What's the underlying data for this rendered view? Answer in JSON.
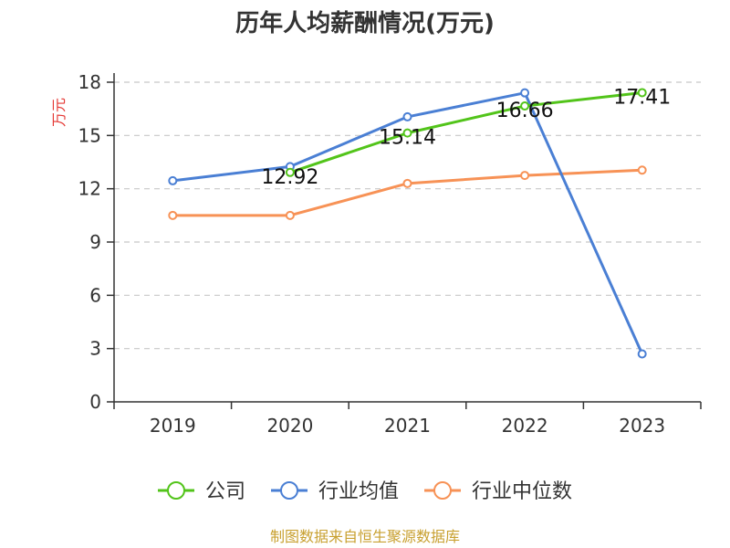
{
  "chart_data": {
    "type": "line",
    "title": "历年人均薪酬情况(万元)",
    "ylabel": "万元",
    "xlabel": "",
    "categories": [
      "2019",
      "2020",
      "2021",
      "2022",
      "2023"
    ],
    "ylim": [
      0,
      18
    ],
    "yticks": [
      0,
      3,
      6,
      9,
      12,
      15,
      18
    ],
    "grid": true,
    "legend_position": "bottom",
    "series": [
      {
        "name": "公司",
        "color": "#52c41a",
        "values": [
          null,
          12.92,
          15.14,
          16.66,
          17.41
        ],
        "labels": [
          "",
          "12.92",
          "15.14",
          "16.66",
          "17.41"
        ]
      },
      {
        "name": "行业均值",
        "color": "#4a7fd4",
        "values": [
          12.45,
          13.25,
          16.05,
          17.4,
          2.7
        ],
        "labels": [
          "",
          "",
          "",
          "",
          ""
        ]
      },
      {
        "name": "行业中位数",
        "color": "#f79256",
        "values": [
          10.5,
          10.5,
          12.3,
          12.75,
          13.05
        ],
        "labels": [
          "",
          "",
          "",
          "",
          ""
        ]
      }
    ]
  },
  "source": "制图数据来自恒生聚源数据库"
}
